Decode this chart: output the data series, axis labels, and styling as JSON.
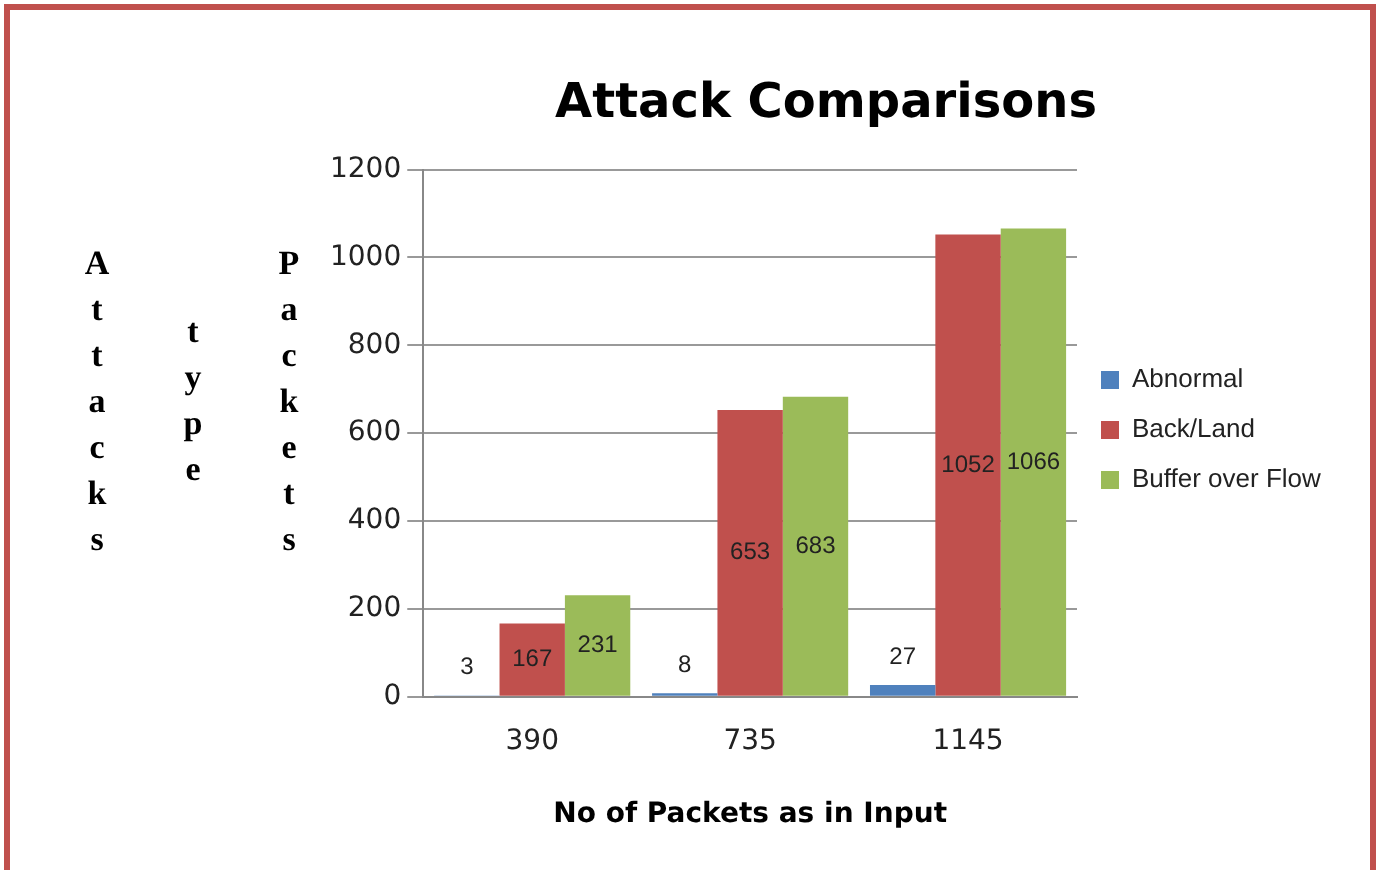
{
  "chart_data": {
    "type": "bar",
    "title": "Attack Comparisons",
    "xlabel": "No of Packets as in Input",
    "ylabel": "Attacks type Packets",
    "categories": [
      "390",
      "735",
      "1145"
    ],
    "series": [
      {
        "name": "Abnormal",
        "color": "#4f81bd",
        "values": [
          3,
          8,
          27
        ]
      },
      {
        "name": "Back/Land",
        "color": "#c0504d",
        "values": [
          167,
          653,
          1052
        ]
      },
      {
        "name": "Buffer over Flow",
        "color": "#9bbb59",
        "values": [
          231,
          683,
          1066
        ]
      }
    ],
    "ylim": [
      0,
      1200
    ],
    "yticks": [
      0,
      200,
      400,
      600,
      800,
      1000,
      1200
    ],
    "grid": "y",
    "legend": "right",
    "data_labels": true
  }
}
